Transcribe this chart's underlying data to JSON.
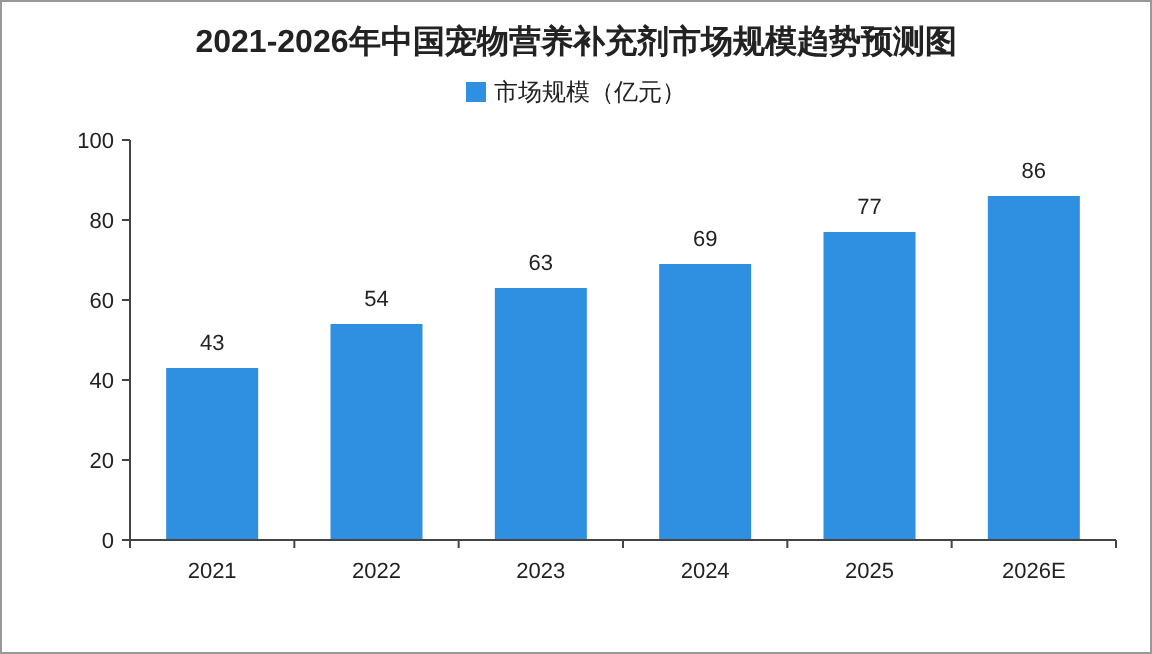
{
  "chart_data": {
    "type": "bar",
    "title": "2021-2026年中国宠物营养补充剂市场规模趋势预测图",
    "categories": [
      "2021",
      "2022",
      "2023",
      "2024",
      "2025",
      "2026E"
    ],
    "series": [
      {
        "name": "市场规模（亿元）",
        "color": "#2f8fe0",
        "values": [
          43,
          54,
          63,
          69,
          77,
          86
        ]
      }
    ],
    "ylim": [
      0,
      100
    ],
    "yticks": [
      0,
      20,
      40,
      60,
      80,
      100
    ],
    "data_labels": true,
    "legend": "top"
  }
}
